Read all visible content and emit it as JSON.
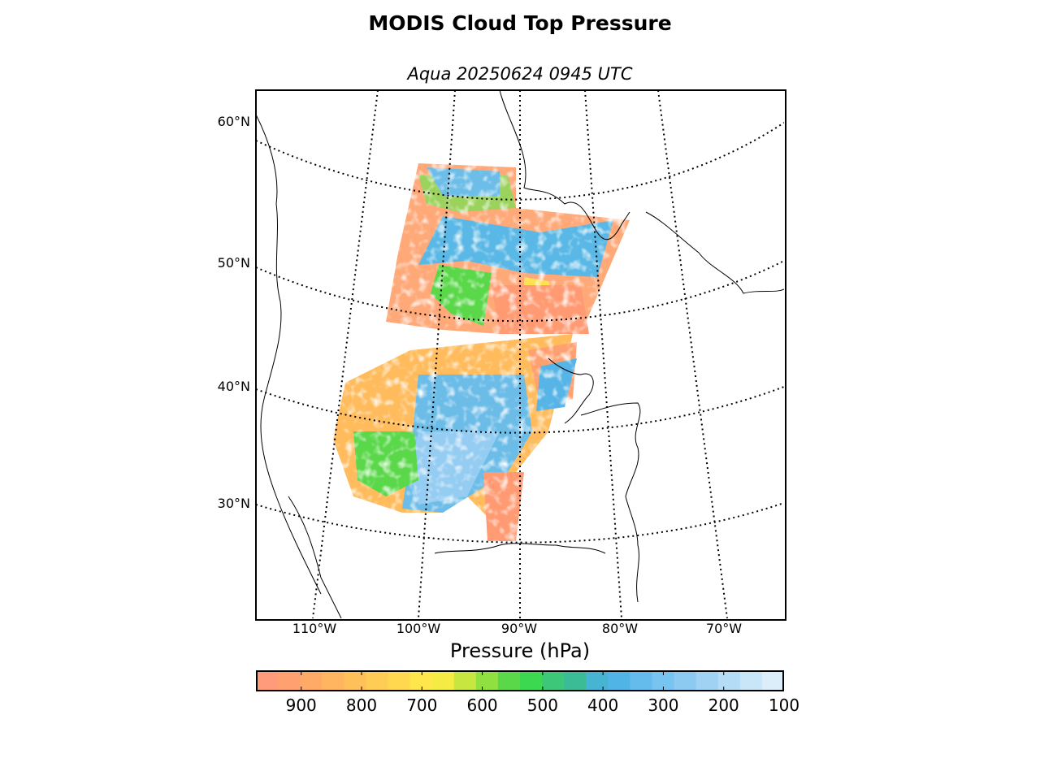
{
  "title": "MODIS Cloud Top Pressure",
  "subtitle": "Aqua 20250624 0945 UTC",
  "lat_labels": [
    {
      "text": "60°N",
      "lat": 60
    },
    {
      "text": "50°N",
      "lat": 50
    },
    {
      "text": "40°N",
      "lat": 40
    },
    {
      "text": "30°N",
      "lat": 30
    }
  ],
  "lon_labels": [
    {
      "text": "110°W",
      "lon": -110
    },
    {
      "text": "100°W",
      "lon": -100
    },
    {
      "text": "90°W",
      "lon": -90
    },
    {
      "text": "80°W",
      "lon": -80
    },
    {
      "text": "70°W",
      "lon": -70
    }
  ],
  "colorbar": {
    "label": "Pressure (hPa)",
    "min": 975,
    "max": 100,
    "ticks": [
      "900",
      "800",
      "700",
      "600",
      "500",
      "400",
      "300",
      "200",
      "100"
    ],
    "tick_values": [
      900,
      800,
      700,
      600,
      500,
      400,
      300,
      200,
      100
    ],
    "colors": [
      "#ff9a7a",
      "#ffa070",
      "#ffaa66",
      "#ffb460",
      "#ffc05a",
      "#ffcc55",
      "#ffd850",
      "#ffe64a",
      "#f5eb45",
      "#c8e640",
      "#90e040",
      "#5ad84a",
      "#3cd850",
      "#3cc878",
      "#3cbc96",
      "#46b4d2",
      "#50b4e6",
      "#64bcec",
      "#78c4f0",
      "#8ccaf2",
      "#a0d2f4",
      "#b4dcf6",
      "#c8e6f8",
      "#dceefa"
    ]
  },
  "map": {
    "projection": "lambert-conic",
    "parallels": [
      30,
      40,
      50,
      60
    ],
    "meridians": [
      -110,
      -100,
      -90,
      -80,
      -70
    ],
    "colors": {
      "low_cloud": "#ff9a72",
      "mid_low_cloud": "#ffbb5c",
      "mid_cloud": "#ffe050",
      "green_cloud": "#5ad84a",
      "high_cloud": "#56b4e6",
      "very_high_cloud": "#a0d2f4"
    }
  }
}
